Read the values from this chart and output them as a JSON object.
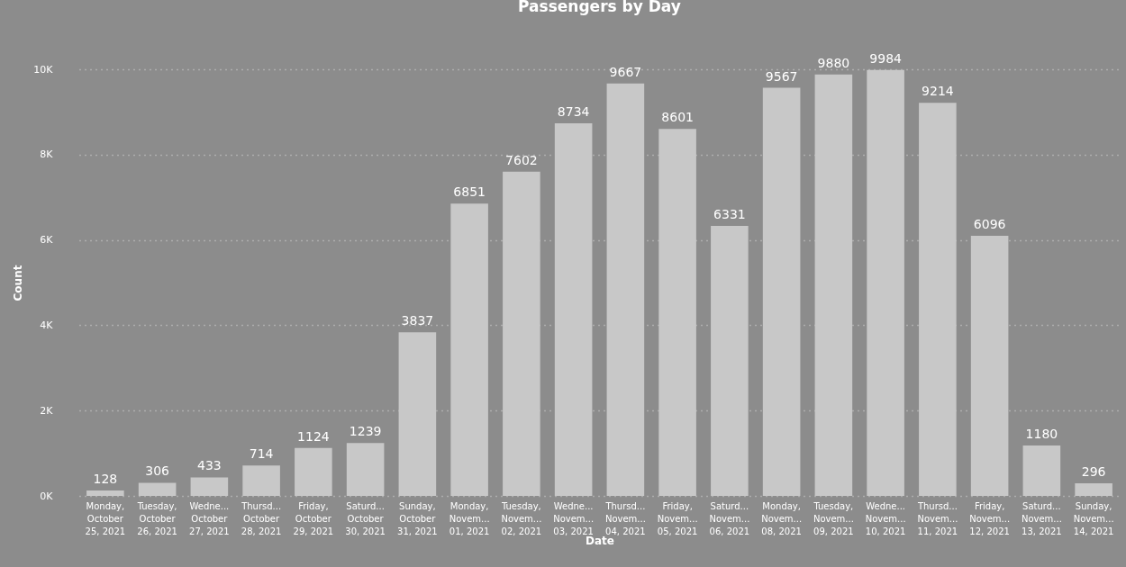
{
  "chart_data": {
    "type": "bar",
    "title": "Passengers by Day",
    "xlabel": "Date",
    "ylabel": "Count",
    "categories": [
      "Monday,\nOctober\n25, 2021",
      "Tuesday,\nOctober\n26, 2021",
      "Wedne...\nOctober\n27, 2021",
      "Thursd...\nOctober\n28, 2021",
      "Friday,\nOctober\n29, 2021",
      "Saturd...\nOctober\n30, 2021",
      "Sunday,\nOctober\n31, 2021",
      "Monday,\nNovem...\n01, 2021",
      "Tuesday,\nNovem...\n02, 2021",
      "Wedne...\nNovem...\n03, 2021",
      "Thursd...\nNovem...\n04, 2021",
      "Friday,\nNovem...\n05, 2021",
      "Saturd...\nNovem...\n06, 2021",
      "Monday,\nNovem...\n08, 2021",
      "Tuesday,\nNovem...\n09, 2021",
      "Wedne...\nNovem...\n10, 2021",
      "Thursd...\nNovem...\n11, 2021",
      "Friday,\nNovem...\n12, 2021",
      "Saturd...\nNovem...\n13, 2021",
      "Sunday,\nNovem...\n14, 2021"
    ],
    "values": [
      128,
      306,
      433,
      714,
      1124,
      1239,
      3837,
      6851,
      7602,
      8734,
      9667,
      8601,
      6331,
      9567,
      9880,
      9984,
      9214,
      6096,
      1180,
      296
    ],
    "color": "#c8c8c8",
    "data_labels": true,
    "grid": "y",
    "ylim": [
      0,
      10000
    ],
    "yticks": [
      {
        "value": 0,
        "label": "0K"
      },
      {
        "value": 2000,
        "label": "2K"
      },
      {
        "value": 4000,
        "label": "4K"
      },
      {
        "value": 6000,
        "label": "6K"
      },
      {
        "value": 8000,
        "label": "8K"
      },
      {
        "value": 10000,
        "label": "10K"
      }
    ]
  }
}
